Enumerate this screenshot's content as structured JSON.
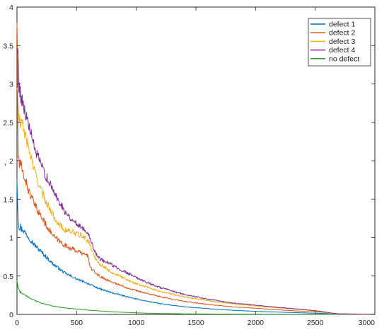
{
  "chart_data": {
    "type": "line",
    "title": "",
    "xlabel": "",
    "ylabel": "",
    "xlim": [
      0,
      3000
    ],
    "ylim": [
      0,
      4
    ],
    "x_ticks": [
      "0",
      "500",
      "1000",
      "1500",
      "2000",
      "2500",
      "3000"
    ],
    "y_ticks": [
      "0",
      "0.5",
      "1",
      "1.5",
      "2",
      "2.5",
      "3",
      "3.5",
      "4"
    ],
    "legend_position": "top-right",
    "grid": false,
    "stray_mark": ",",
    "series": [
      {
        "name": "defect 1",
        "color": "#0072bd",
        "x": [
          0,
          10,
          20,
          50,
          100,
          150,
          200,
          250,
          300,
          350,
          400,
          450,
          500,
          550,
          600,
          650,
          700,
          800,
          900,
          1000,
          1100,
          1200,
          1400,
          1600,
          1800,
          2000,
          2200,
          2400,
          2600,
          2700,
          2800,
          3000
        ],
        "y": [
          1.8,
          1.25,
          1.15,
          1.1,
          1.0,
          0.9,
          0.82,
          0.74,
          0.66,
          0.6,
          0.54,
          0.5,
          0.46,
          0.43,
          0.4,
          0.36,
          0.33,
          0.28,
          0.24,
          0.2,
          0.17,
          0.14,
          0.1,
          0.075,
          0.055,
          0.04,
          0.03,
          0.02,
          0.012,
          0.008,
          0.005,
          0.002
        ]
      },
      {
        "name": "defect 2",
        "color": "#d95319",
        "x": [
          0,
          10,
          20,
          50,
          100,
          150,
          200,
          250,
          300,
          350,
          400,
          450,
          500,
          550,
          600,
          610,
          650,
          700,
          800,
          900,
          1000,
          1100,
          1200,
          1400,
          1600,
          1800,
          2000,
          2200,
          2400,
          2550,
          2650,
          2700,
          3000
        ],
        "y": [
          3.9,
          2.1,
          1.95,
          1.85,
          1.6,
          1.42,
          1.28,
          1.15,
          1.03,
          0.96,
          0.9,
          0.86,
          0.83,
          0.79,
          0.76,
          0.62,
          0.55,
          0.49,
          0.42,
          0.36,
          0.31,
          0.27,
          0.23,
          0.17,
          0.13,
          0.1,
          0.08,
          0.06,
          0.04,
          0.03,
          0.015,
          0.006,
          0.002
        ]
      },
      {
        "name": "defect 3",
        "color": "#edb120",
        "x": [
          0,
          10,
          20,
          50,
          100,
          150,
          200,
          250,
          300,
          350,
          400,
          450,
          500,
          550,
          600,
          650,
          700,
          800,
          900,
          1000,
          1100,
          1200,
          1400,
          1600,
          1800,
          2000,
          2200,
          2400,
          2550,
          2650,
          2700,
          3000
        ],
        "y": [
          3.0,
          2.7,
          2.5,
          2.45,
          2.15,
          1.85,
          1.62,
          1.45,
          1.3,
          1.18,
          1.1,
          1.08,
          1.05,
          1.02,
          0.95,
          0.75,
          0.65,
          0.54,
          0.47,
          0.4,
          0.35,
          0.3,
          0.23,
          0.18,
          0.14,
          0.11,
          0.085,
          0.06,
          0.035,
          0.01,
          0.005,
          0.002
        ]
      },
      {
        "name": "defect 4",
        "color": "#7e2f8e",
        "x": [
          0,
          10,
          20,
          50,
          100,
          150,
          200,
          250,
          300,
          350,
          400,
          450,
          500,
          550,
          600,
          650,
          700,
          800,
          900,
          1000,
          1100,
          1200,
          1400,
          1600,
          1800,
          2000,
          2200,
          2400,
          2550,
          2650,
          2700,
          3000
        ],
        "y": [
          3.5,
          3.25,
          2.95,
          2.75,
          2.45,
          2.15,
          1.95,
          1.78,
          1.62,
          1.48,
          1.35,
          1.25,
          1.18,
          1.13,
          1.06,
          0.82,
          0.72,
          0.64,
          0.56,
          0.48,
          0.41,
          0.35,
          0.26,
          0.2,
          0.15,
          0.12,
          0.09,
          0.065,
          0.04,
          0.015,
          0.008,
          0.002
        ]
      },
      {
        "name": "no defect",
        "color": "#21a31f",
        "x": [
          0,
          10,
          20,
          50,
          100,
          150,
          200,
          300,
          400,
          500,
          600,
          800,
          1000,
          1200,
          1500,
          1800,
          2100,
          2400,
          2700,
          3000
        ],
        "y": [
          0.45,
          0.35,
          0.3,
          0.27,
          0.22,
          0.18,
          0.15,
          0.11,
          0.085,
          0.07,
          0.055,
          0.035,
          0.02,
          0.012,
          0.006,
          0.004,
          0.003,
          0.002,
          0.001,
          0.0
        ]
      }
    ]
  }
}
